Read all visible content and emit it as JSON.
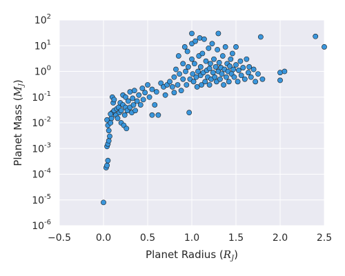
{
  "chart_data": {
    "type": "scatter",
    "title": "",
    "xlabel": {
      "text": "Planet Radius (",
      "var": "R",
      "sub": "J",
      "close": ")"
    },
    "ylabel": {
      "text": "Planet Mass (",
      "var": "M",
      "sub": "J",
      "close": ")"
    },
    "xlim": [
      -0.5,
      2.5
    ],
    "ylim_log10": [
      -6,
      2
    ],
    "yscale": "log",
    "grid": true,
    "x_ticks": [
      "−0.5",
      "0.0",
      "0.5",
      "1.0",
      "1.5",
      "2.0",
      "2.5"
    ],
    "y_ticks": [
      {
        "base": "10",
        "exp": "-6"
      },
      {
        "base": "10",
        "exp": "-5"
      },
      {
        "base": "10",
        "exp": "-4"
      },
      {
        "base": "10",
        "exp": "-3"
      },
      {
        "base": "10",
        "exp": "-2"
      },
      {
        "base": "10",
        "exp": "-1"
      },
      {
        "base": "10",
        "exp": "0"
      },
      {
        "base": "10",
        "exp": "1"
      },
      {
        "base": "10",
        "exp": "2"
      }
    ],
    "point_color": "#3a96dc",
    "edge_color": "#1a1a1a",
    "background": "#eaeaf2",
    "points": [
      [
        0.0,
        8e-06
      ],
      [
        0.03,
        0.00018
      ],
      [
        0.04,
        0.00022
      ],
      [
        0.05,
        0.00034
      ],
      [
        0.04,
        0.0012
      ],
      [
        0.05,
        0.0015
      ],
      [
        0.06,
        0.002
      ],
      [
        0.07,
        0.003
      ],
      [
        0.06,
        0.005
      ],
      [
        0.05,
        0.008
      ],
      [
        0.04,
        0.013
      ],
      [
        0.08,
        0.01
      ],
      [
        0.09,
        0.015
      ],
      [
        0.1,
        0.025
      ],
      [
        0.08,
        0.022
      ],
      [
        0.12,
        0.03
      ],
      [
        0.11,
        0.06
      ],
      [
        0.1,
        0.1
      ],
      [
        0.12,
        0.08
      ],
      [
        0.14,
        0.02
      ],
      [
        0.15,
        0.035
      ],
      [
        0.16,
        0.015
      ],
      [
        0.17,
        0.04
      ],
      [
        0.18,
        0.025
      ],
      [
        0.19,
        0.06
      ],
      [
        0.2,
        0.03
      ],
      [
        0.2,
        0.01
      ],
      [
        0.22,
        0.05
      ],
      [
        0.22,
        0.12
      ],
      [
        0.23,
        0.008
      ],
      [
        0.24,
        0.02
      ],
      [
        0.25,
        0.04
      ],
      [
        0.25,
        0.1
      ],
      [
        0.26,
        0.006
      ],
      [
        0.27,
        0.03
      ],
      [
        0.28,
        0.07
      ],
      [
        0.3,
        0.16
      ],
      [
        0.3,
        0.04
      ],
      [
        0.32,
        0.025
      ],
      [
        0.33,
        0.09
      ],
      [
        0.34,
        0.05
      ],
      [
        0.35,
        0.18
      ],
      [
        0.36,
        0.03
      ],
      [
        0.38,
        0.07
      ],
      [
        0.4,
        0.12
      ],
      [
        0.42,
        0.05
      ],
      [
        0.44,
        0.22
      ],
      [
        0.45,
        0.08
      ],
      [
        0.47,
        0.15
      ],
      [
        0.5,
        0.3
      ],
      [
        0.52,
        0.1
      ],
      [
        0.55,
        0.02
      ],
      [
        0.55,
        0.2
      ],
      [
        0.58,
        0.05
      ],
      [
        0.6,
        0.16
      ],
      [
        0.62,
        0.02
      ],
      [
        0.65,
        0.35
      ],
      [
        0.68,
        0.25
      ],
      [
        0.7,
        0.12
      ],
      [
        0.72,
        0.3
      ],
      [
        0.75,
        0.4
      ],
      [
        0.78,
        0.25
      ],
      [
        0.8,
        0.6
      ],
      [
        0.8,
        0.15
      ],
      [
        0.82,
        1.2
      ],
      [
        0.84,
        0.3
      ],
      [
        0.85,
        4.0
      ],
      [
        0.86,
        0.8
      ],
      [
        0.88,
        0.18
      ],
      [
        0.9,
        2.0
      ],
      [
        0.9,
        0.5
      ],
      [
        0.92,
        9.0
      ],
      [
        0.93,
        1.0
      ],
      [
        0.94,
        0.3
      ],
      [
        0.95,
        6.0
      ],
      [
        0.96,
        1.5
      ],
      [
        0.97,
        0.025
      ],
      [
        0.98,
        0.5
      ],
      [
        1.0,
        30.0
      ],
      [
        1.0,
        12.0
      ],
      [
        1.0,
        3.0
      ],
      [
        1.01,
        0.8
      ],
      [
        1.02,
        0.4
      ],
      [
        1.03,
        2.0
      ],
      [
        1.04,
        15.0
      ],
      [
        1.05,
        0.6
      ],
      [
        1.06,
        0.25
      ],
      [
        1.07,
        1.0
      ],
      [
        1.08,
        4.0
      ],
      [
        1.09,
        20.0
      ],
      [
        1.1,
        0.7
      ],
      [
        1.1,
        1.5
      ],
      [
        1.11,
        0.3
      ],
      [
        1.12,
        5.0
      ],
      [
        1.13,
        0.9
      ],
      [
        1.14,
        18.0
      ],
      [
        1.15,
        0.4
      ],
      [
        1.16,
        2.5
      ],
      [
        1.17,
        1.1
      ],
      [
        1.18,
        0.6
      ],
      [
        1.19,
        8.0
      ],
      [
        1.2,
        1.3
      ],
      [
        1.2,
        0.3
      ],
      [
        1.21,
        2.0
      ],
      [
        1.22,
        0.5
      ],
      [
        1.23,
        12.0
      ],
      [
        1.24,
        0.9
      ],
      [
        1.25,
        3.0
      ],
      [
        1.26,
        0.6
      ],
      [
        1.27,
        1.5
      ],
      [
        1.28,
        0.4
      ],
      [
        1.29,
        7.0
      ],
      [
        1.3,
        30.0
      ],
      [
        1.3,
        1.0
      ],
      [
        1.31,
        2.2
      ],
      [
        1.32,
        0.5
      ],
      [
        1.33,
        1.4
      ],
      [
        1.34,
        0.8
      ],
      [
        1.35,
        4.0
      ],
      [
        1.36,
        0.3
      ],
      [
        1.37,
        1.2
      ],
      [
        1.38,
        9.0
      ],
      [
        1.39,
        0.6
      ],
      [
        1.4,
        2.0
      ],
      [
        1.41,
        1.0
      ],
      [
        1.42,
        0.4
      ],
      [
        1.43,
        1.6
      ],
      [
        1.44,
        3.0
      ],
      [
        1.45,
        0.8
      ],
      [
        1.46,
        5.0
      ],
      [
        1.47,
        1.2
      ],
      [
        1.48,
        0.6
      ],
      [
        1.5,
        1.8
      ],
      [
        1.5,
        9.0
      ],
      [
        1.52,
        0.4
      ],
      [
        1.53,
        1.1
      ],
      [
        1.55,
        2.5
      ],
      [
        1.56,
        0.7
      ],
      [
        1.58,
        1.4
      ],
      [
        1.6,
        0.5
      ],
      [
        1.62,
        3.0
      ],
      [
        1.64,
        0.9
      ],
      [
        1.65,
        1.5
      ],
      [
        1.67,
        0.6
      ],
      [
        1.7,
        1.2
      ],
      [
        1.72,
        0.4
      ],
      [
        1.75,
        0.8
      ],
      [
        1.78,
        22.0
      ],
      [
        1.8,
        0.5
      ],
      [
        2.0,
        0.45
      ],
      [
        2.0,
        0.9
      ],
      [
        2.05,
        1.0
      ],
      [
        2.4,
        23.0
      ],
      [
        2.5,
        9.0
      ]
    ]
  }
}
